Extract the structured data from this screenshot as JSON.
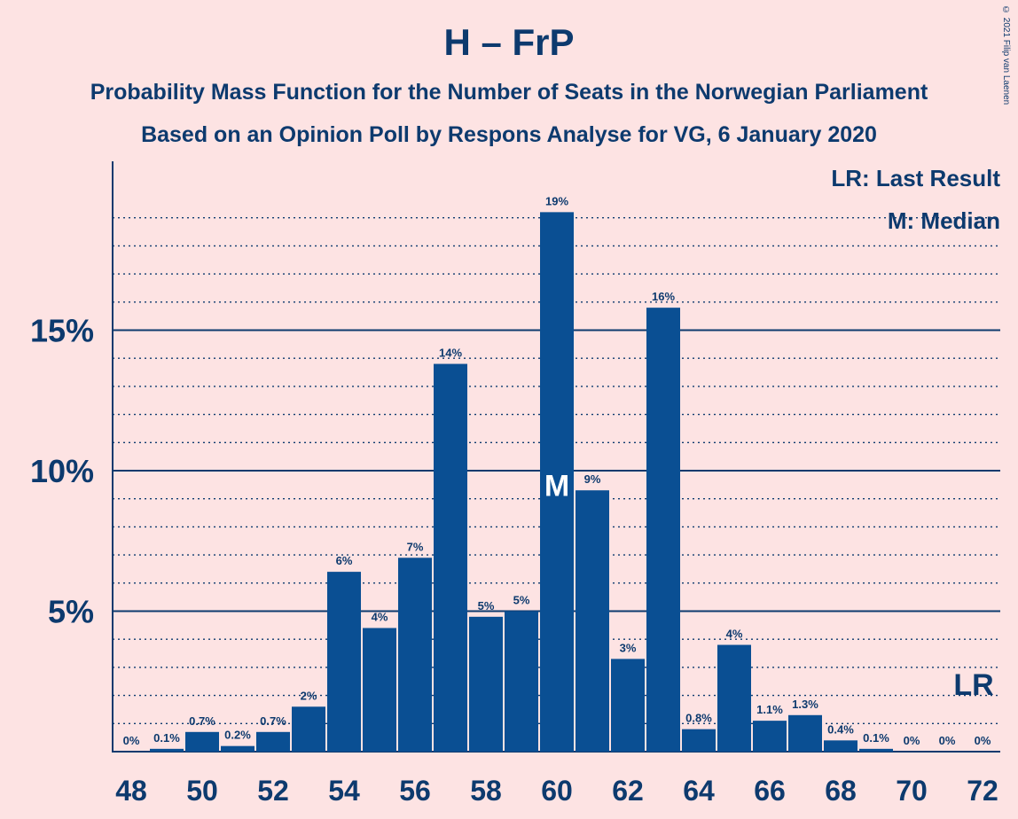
{
  "title": "H – FrP",
  "subtitle_1": "Probability Mass Function for the Number of Seats in the Norwegian Parliament",
  "subtitle_2": "Based on an Opinion Poll by Respons Analyse for VG, 6 January 2020",
  "copyright": "© 2021 Filip van Laenen",
  "legend": {
    "last_result": "LR: Last Result",
    "median": "M: Median"
  },
  "colors": {
    "background": "#fde3e3",
    "bar": "#0a4f93",
    "text": "#0d3a6e"
  },
  "chart_data": {
    "type": "bar",
    "categories": [
      48,
      49,
      50,
      51,
      52,
      53,
      54,
      55,
      56,
      57,
      58,
      59,
      60,
      61,
      62,
      63,
      64,
      65,
      66,
      67,
      68,
      69,
      70,
      71,
      72
    ],
    "values": [
      0,
      0.1,
      0.7,
      0.2,
      0.7,
      1.6,
      6.4,
      4.4,
      6.9,
      13.8,
      4.8,
      5.0,
      19.2,
      9.3,
      3.3,
      15.8,
      0.8,
      3.8,
      1.1,
      1.3,
      0.4,
      0.1,
      0,
      0,
      0
    ],
    "data_labels": [
      "0%",
      "0.1%",
      "0.7%",
      "0.2%",
      "0.7%",
      "2%",
      "6%",
      "4%",
      "7%",
      "14%",
      "5%",
      "5%",
      "19%",
      "9%",
      "3%",
      "16%",
      "0.8%",
      "4%",
      "1.1%",
      "1.3%",
      "0.4%",
      "0.1%",
      "0%",
      "0%",
      "0%"
    ],
    "x_tick_labels": [
      "48",
      "50",
      "52",
      "54",
      "56",
      "58",
      "60",
      "62",
      "64",
      "66",
      "68",
      "70",
      "72"
    ],
    "y_tick_labels": [
      "5%",
      "10%",
      "15%"
    ],
    "y_ticks": [
      5,
      10,
      15
    ],
    "ylim": [
      0,
      21
    ],
    "median_seat": 60,
    "median_label": "M",
    "last_result_seat": 72,
    "last_result_label": "LR",
    "grid": true
  }
}
